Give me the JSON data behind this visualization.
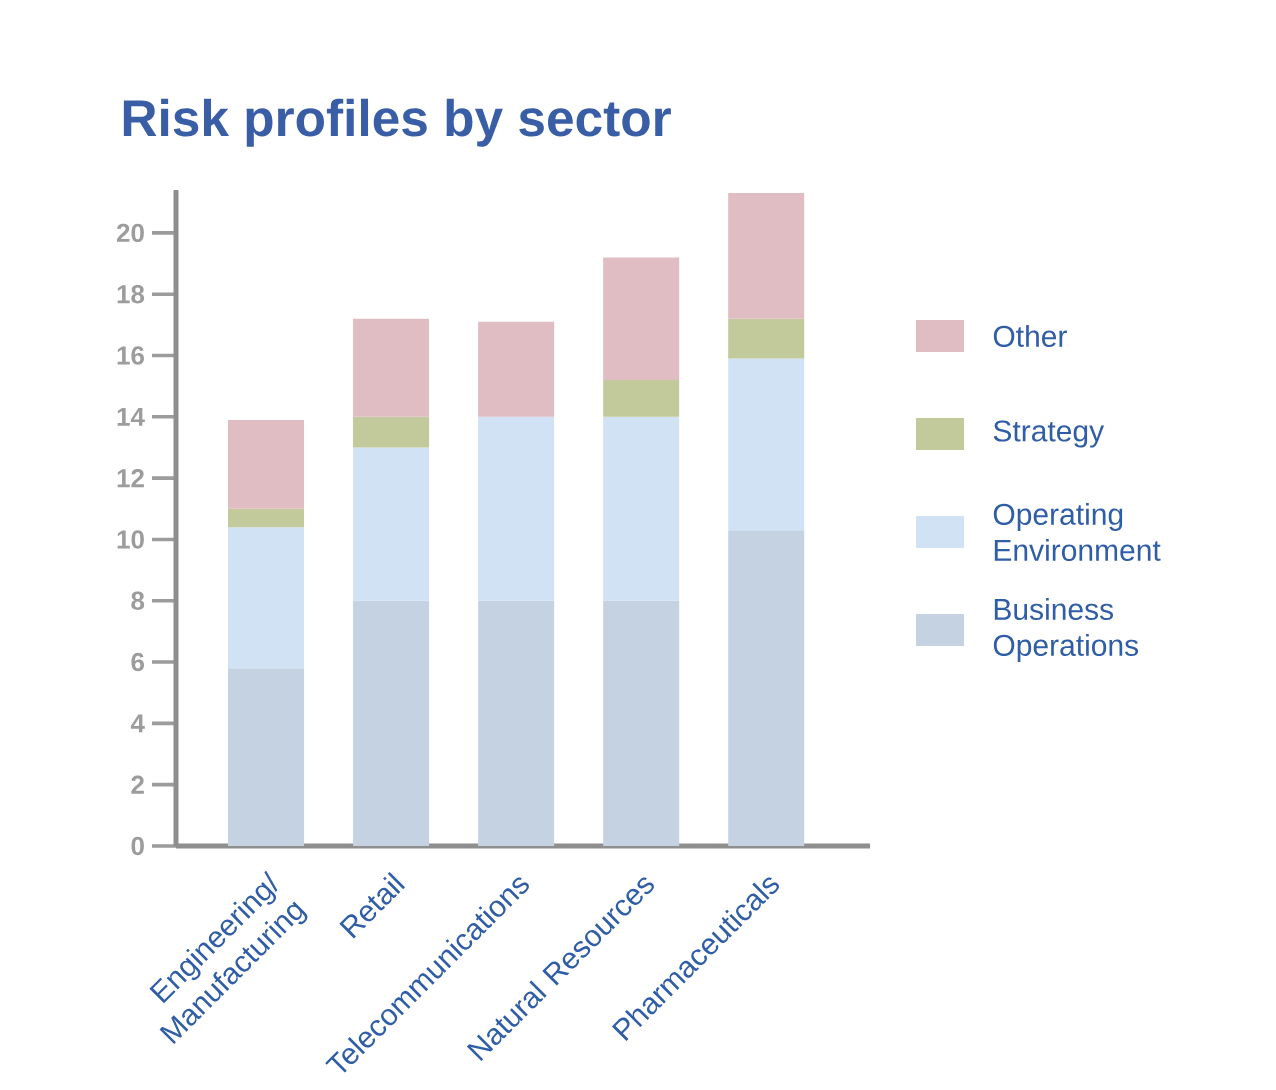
{
  "chart_data": {
    "type": "bar",
    "title": "Risk profiles by sector",
    "stacked": true,
    "legend": "right",
    "categories": [
      "Engineering/ Manufacturing",
      "Retail",
      "Telecommunications",
      "Natural Resources",
      "Pharmaceuticals"
    ],
    "series": [
      {
        "name": "Business Operations",
        "color": "#c5d2e2",
        "values": [
          5.8,
          8,
          8,
          8,
          10.3
        ]
      },
      {
        "name": "Operating Environment",
        "color": "#d0e2f3",
        "values": [
          4.6,
          5,
          6,
          6,
          5.6
        ]
      },
      {
        "name": "Strategy",
        "color": "#c2c99a",
        "values": [
          0.6,
          1,
          null,
          1.2,
          1.3
        ]
      },
      {
        "name": "Other",
        "color": "#e0bcc3",
        "values": [
          2.9,
          3.2,
          3.1,
          4,
          4.1
        ]
      }
    ],
    "ylim": [
      0,
      21.4
    ],
    "yticks": [
      0,
      2,
      4,
      6,
      8,
      10,
      12,
      14,
      16,
      18,
      20
    ]
  }
}
